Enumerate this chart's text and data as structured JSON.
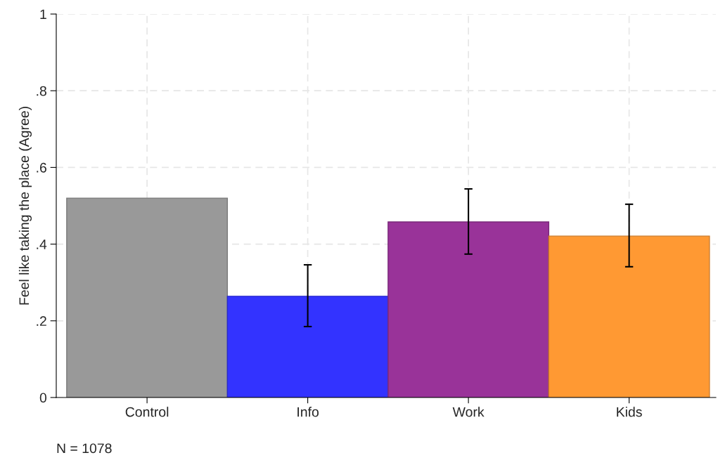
{
  "chart_data": {
    "type": "bar",
    "ylabel": "Feel like taking the place (Agree)",
    "categories": [
      "Control",
      "Info",
      "Work",
      "Kids"
    ],
    "values": [
      0.52,
      0.264,
      0.458,
      0.421
    ],
    "colors": [
      "#999999",
      "#3333ff",
      "#993399",
      "#ff9933"
    ],
    "errors": [
      null,
      [
        0.185,
        0.346
      ],
      [
        0.374,
        0.544
      ],
      [
        0.341,
        0.504
      ]
    ],
    "ylim": [
      0,
      1
    ],
    "yticks": [
      0,
      {
        "value": 0.2,
        "label": ".2"
      },
      {
        "value": 0.4,
        "label": ".4"
      },
      {
        "value": 0.6,
        "label": ".6"
      },
      {
        "value": 0.8,
        "label": ".8"
      },
      1
    ],
    "grid": true,
    "annotations": [
      "N = 1078"
    ]
  }
}
